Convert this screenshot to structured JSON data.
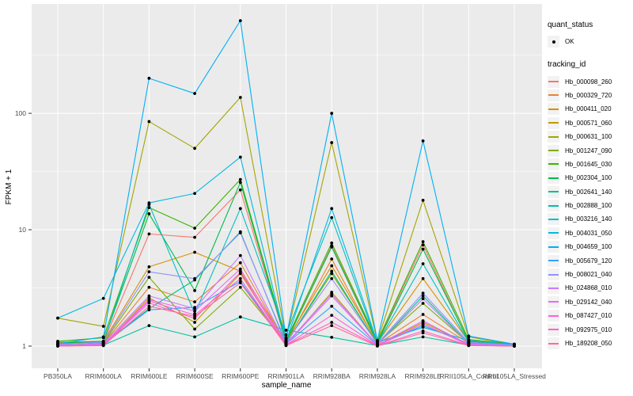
{
  "chart_data": {
    "type": "line",
    "title": "",
    "xlabel": "sample_name",
    "ylabel": "FPKM + 1",
    "y_scale": "log10",
    "y_ticks": [
      1,
      10,
      100
    ],
    "y_tick_labels": [
      "1",
      "10",
      "100"
    ],
    "y_minor_ticks": [
      3.162,
      31.62,
      316.2
    ],
    "ylim": [
      0.645,
      870
    ],
    "grid": true,
    "panel_bg": "#ebebeb",
    "grid_color": "#ffffff",
    "point_color": "#000000",
    "legend_position": "right",
    "x_categories": [
      "PB350LA",
      "RRIM600LA",
      "RRIM600LE",
      "RRIM600SE",
      "RRIM600PE",
      "RRIM901LA",
      "RRIM928BA",
      "RRIM928LA",
      "RRIM928LE",
      "RRII105LA_Control",
      "RRII105LA_Stressed"
    ],
    "series": [
      {
        "name": "Hb_000098_260",
        "color": "#F8766D",
        "values": [
          1.05,
          1.08,
          9.2,
          8.6,
          22,
          1.08,
          7.3,
          1.08,
          7.4,
          1.08,
          1.02
        ]
      },
      {
        "name": "Hb_000329_720",
        "color": "#EA8331",
        "values": [
          1.02,
          1.05,
          3.2,
          2.4,
          5.2,
          1.05,
          5.6,
          1.04,
          1.87,
          1.06,
          1.01
        ]
      },
      {
        "name": "Hb_000411_020",
        "color": "#D89000",
        "values": [
          1.08,
          1.1,
          4.8,
          6.4,
          4.4,
          1.1,
          4.9,
          1.07,
          3.8,
          1.1,
          1.02
        ]
      },
      {
        "name": "Hb_000571_060",
        "color": "#C09B00",
        "values": [
          1.03,
          1.02,
          2.6,
          1.6,
          4.2,
          1.03,
          2.9,
          1.02,
          1.6,
          1.04,
          1.01
        ]
      },
      {
        "name": "Hb_000631_100",
        "color": "#A3A500",
        "values": [
          1.74,
          1.48,
          85,
          50,
          137,
          1.15,
          56,
          1.1,
          17.9,
          1.2,
          1.03
        ]
      },
      {
        "name": "Hb_001247_090",
        "color": "#7CAE00",
        "values": [
          1.02,
          1.06,
          3.9,
          1.4,
          3.2,
          1.06,
          4.2,
          1.05,
          2.33,
          1.06,
          1.01
        ]
      },
      {
        "name": "Hb_001645_030",
        "color": "#39B600",
        "values": [
          1.1,
          1.18,
          15.5,
          10.3,
          27,
          1.12,
          7.7,
          1.1,
          7.9,
          1.14,
          1.04
        ]
      },
      {
        "name": "Hb_002304_100",
        "color": "#00BB4E",
        "values": [
          1.06,
          1.1,
          13.7,
          3.0,
          25.5,
          1.08,
          7.1,
          1.06,
          6.8,
          1.1,
          1.02
        ]
      },
      {
        "name": "Hb_002641_140",
        "color": "#00C087",
        "values": [
          1.02,
          1.05,
          2.1,
          3.7,
          9.6,
          1.05,
          4.4,
          1.03,
          2.7,
          1.05,
          1.01
        ]
      },
      {
        "name": "Hb_002888_100",
        "color": "#00C1A3",
        "values": [
          1.01,
          1.02,
          1.5,
          1.2,
          1.78,
          1.37,
          1.19,
          1.01,
          1.2,
          1.02,
          1.0
        ]
      },
      {
        "name": "Hb_003216_140",
        "color": "#00BFC4",
        "values": [
          1.04,
          1.08,
          16.5,
          1.9,
          15.2,
          1.25,
          12.7,
          1.05,
          5.1,
          1.08,
          1.02
        ]
      },
      {
        "name": "Hb_004031_050",
        "color": "#00BAE0",
        "values": [
          1.74,
          2.57,
          17,
          20.5,
          42,
          1.1,
          15.2,
          1.08,
          1.45,
          1.12,
          1.03
        ]
      },
      {
        "name": "Hb_004659_100",
        "color": "#00B0F6",
        "values": [
          1.05,
          1.2,
          200,
          148,
          625,
          1.18,
          100,
          1.12,
          58,
          1.22,
          1.04
        ]
      },
      {
        "name": "Hb_005679_120",
        "color": "#35A2FF",
        "values": [
          1.02,
          1.04,
          2.05,
          2.15,
          3.6,
          1.04,
          2.2,
          1.02,
          1.5,
          1.05,
          1.01
        ]
      },
      {
        "name": "Hb_008021_040",
        "color": "#9590FF",
        "values": [
          1.04,
          1.08,
          4.35,
          3.8,
          9.4,
          1.08,
          3.8,
          1.05,
          2.85,
          1.08,
          1.02
        ]
      },
      {
        "name": "Hb_024868_010",
        "color": "#C77CFF",
        "values": [
          1.02,
          1.05,
          2.7,
          2.1,
          6.0,
          1.05,
          2.8,
          1.03,
          2.55,
          1.05,
          1.01
        ]
      },
      {
        "name": "Hb_029142_040",
        "color": "#E76BF3",
        "values": [
          1.01,
          1.03,
          2.5,
          2.0,
          4.6,
          1.03,
          2.7,
          1.02,
          1.65,
          1.03,
          1.0
        ]
      },
      {
        "name": "Hb_087427_010",
        "color": "#FA62DB",
        "values": [
          1.01,
          1.02,
          2.44,
          1.85,
          3.8,
          1.02,
          1.84,
          1.01,
          1.55,
          1.02,
          1.0
        ]
      },
      {
        "name": "Hb_092975_010",
        "color": "#FF61CC",
        "values": [
          1.0,
          1.02,
          2.35,
          1.73,
          4.3,
          1.02,
          1.6,
          1.01,
          1.35,
          1.02,
          1.0
        ]
      },
      {
        "name": "Hb_189208_050",
        "color": "#FF6A98",
        "values": [
          1.0,
          1.01,
          2.2,
          1.8,
          3.5,
          1.01,
          1.5,
          1.0,
          1.3,
          1.01,
          1.0
        ]
      }
    ]
  },
  "legend": {
    "quant_status": {
      "title": "quant_status",
      "items": [
        {
          "label": "OK",
          "symbol": "black-point"
        }
      ]
    },
    "tracking_id": {
      "title": "tracking_id"
    }
  }
}
